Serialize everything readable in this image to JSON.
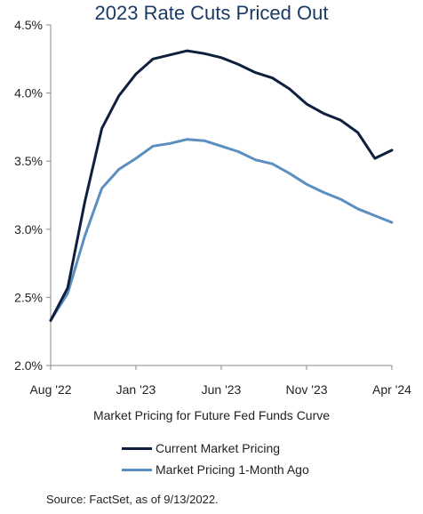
{
  "chart_data": {
    "type": "line",
    "title": "2023 Rate Cuts Priced Out",
    "xlabel": "Market Pricing for Future Fed Funds Curve",
    "ylabel": "",
    "x_tick_labels": [
      "Aug '22",
      "Jan '23",
      "Jun '23",
      "Nov '23",
      "Apr '24"
    ],
    "y_tick_labels": [
      "2.0%",
      "2.5%",
      "3.0%",
      "3.5%",
      "4.0%",
      "4.5%"
    ],
    "ylim": [
      2.0,
      4.5
    ],
    "xlim": [
      "Aug '22",
      "Apr '24"
    ],
    "x": [
      "Aug '22",
      "Sep '22",
      "Oct '22",
      "Nov '22",
      "Dec '22",
      "Jan '23",
      "Feb '23",
      "Mar '23",
      "Apr '23",
      "May '23",
      "Jun '23",
      "Jul '23",
      "Aug '23",
      "Sep '23",
      "Oct '23",
      "Nov '23",
      "Dec '23",
      "Jan '24",
      "Feb '24",
      "Mar '24",
      "Apr '24"
    ],
    "series": [
      {
        "name": "Current Market Pricing",
        "color": "#0f1f3d",
        "values": [
          2.33,
          2.57,
          3.2,
          3.74,
          3.98,
          4.14,
          4.25,
          4.28,
          4.31,
          4.29,
          4.26,
          4.21,
          4.15,
          4.11,
          4.03,
          3.92,
          3.85,
          3.8,
          3.71,
          3.52,
          3.58
        ]
      },
      {
        "name": "Market Pricing 1-Month Ago",
        "color": "#5b8fbf",
        "values": [
          2.33,
          2.53,
          2.95,
          3.3,
          3.44,
          3.52,
          3.61,
          3.63,
          3.66,
          3.65,
          3.61,
          3.57,
          3.51,
          3.48,
          3.41,
          3.33,
          3.27,
          3.22,
          3.15,
          3.1,
          3.05
        ]
      }
    ],
    "grid": false,
    "legend_position": "bottom"
  },
  "source": "Source: FactSet, as of 9/13/2022."
}
